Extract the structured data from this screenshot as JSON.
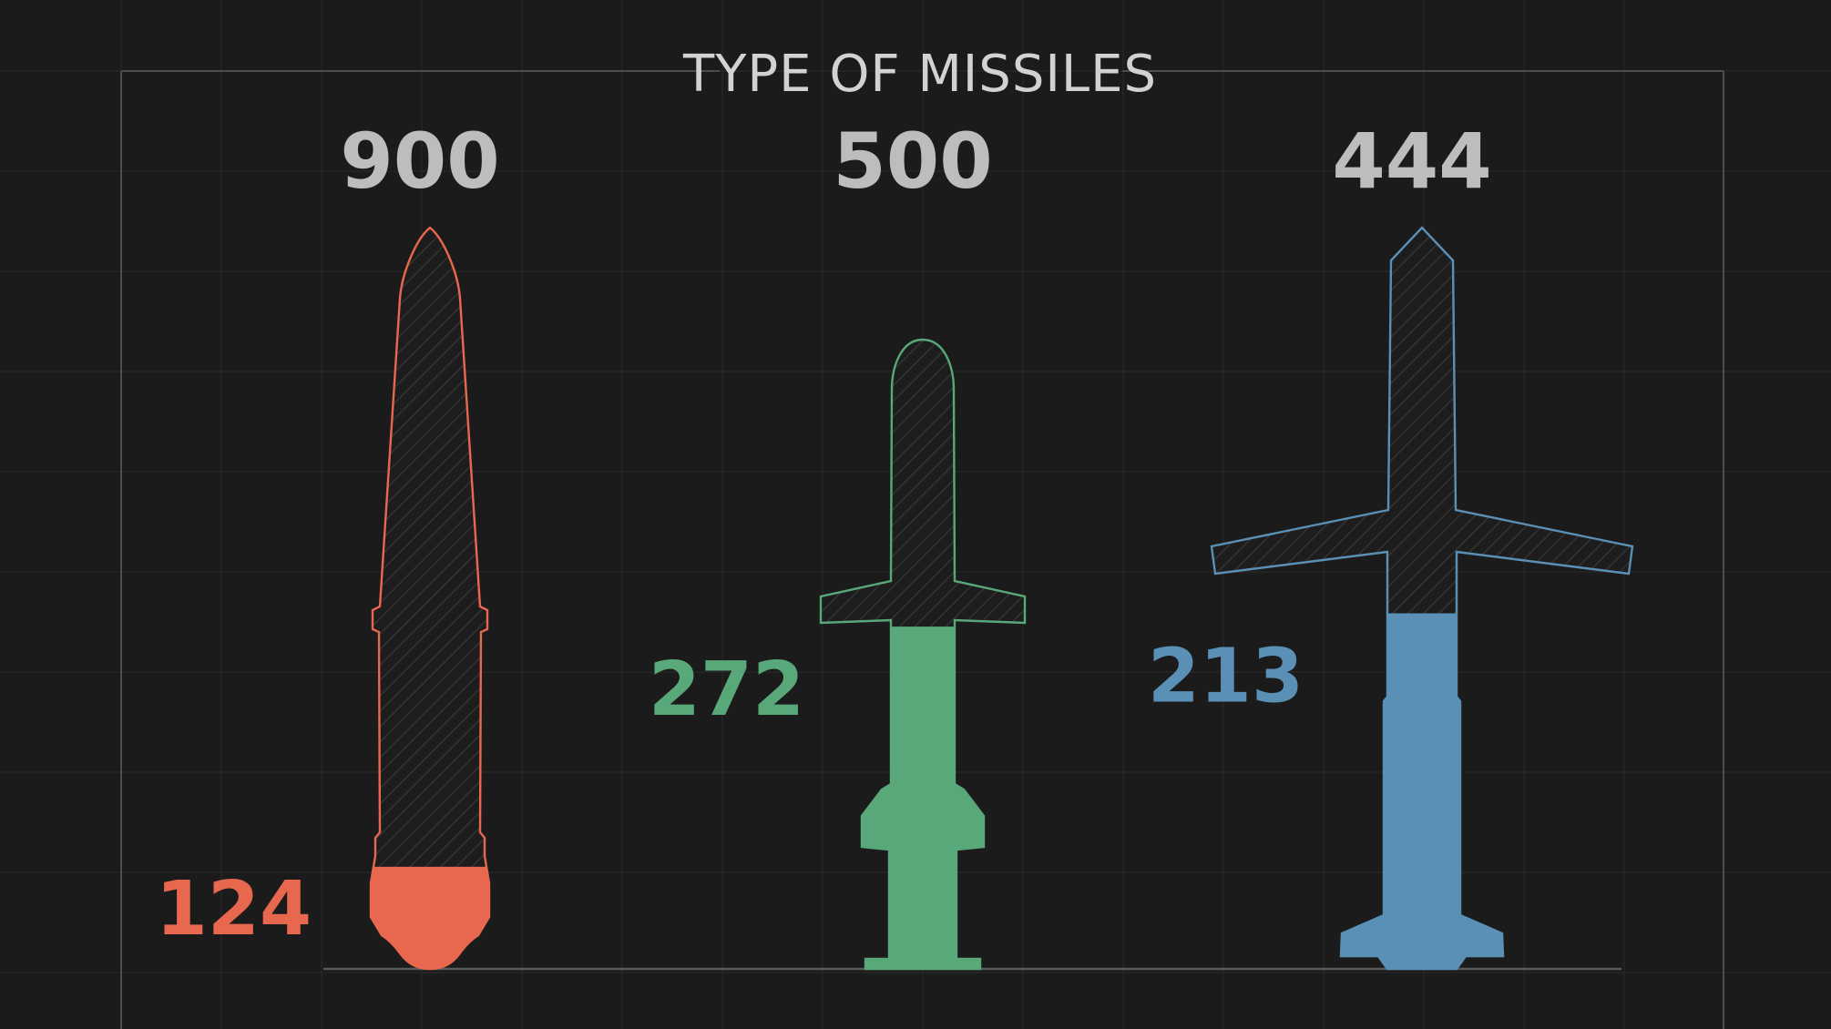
{
  "chart_data": {
    "type": "bar",
    "title": "TYPE OF MISSILES",
    "categories": [
      "",
      "",
      ""
    ],
    "series": [
      {
        "values": [
          900,
          500,
          444
        ]
      },
      {
        "values": [
          124,
          272,
          213
        ]
      }
    ],
    "colors": [
      "#e8684f",
      "#58a87a",
      "#5a90b5"
    ],
    "background": "#1b1b1b",
    "grid": true,
    "legend": "none"
  }
}
